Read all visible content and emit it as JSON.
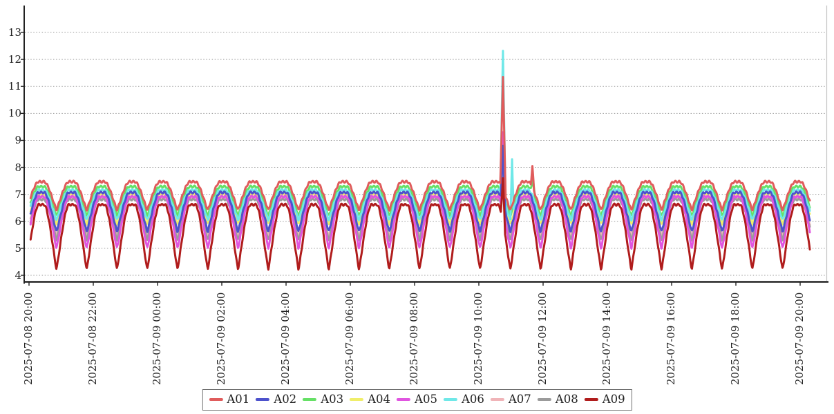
{
  "chart_data": {
    "type": "line",
    "title": "",
    "xlabel": "",
    "ylabel": "",
    "x_start": "2025-07-08 20:00",
    "x_end": "2025-07-09 20:00",
    "x_tick_interval_hours": 2,
    "x_tick_labels": [
      "2025-07-08 20:00",
      "2025-07-08 22:00",
      "2025-07-09 00:00",
      "2025-07-09 02:00",
      "2025-07-09 04:00",
      "2025-07-09 06:00",
      "2025-07-09 08:00",
      "2025-07-09 10:00",
      "2025-07-09 12:00",
      "2025-07-09 14:00",
      "2025-07-09 16:00",
      "2025-07-09 18:00",
      "2025-07-09 20:00"
    ],
    "y_ticks": [
      13,
      12,
      11,
      10,
      9,
      8,
      7,
      6,
      5,
      4
    ],
    "ylim": [
      3.7,
      14.0
    ],
    "grid": "horizontal-dashed",
    "grid_color": "#9a9a9a",
    "legend_position": "bottom-center",
    "series": [
      {
        "name": "A01",
        "color": "#e05c5c",
        "min": 6.42,
        "max": 7.46
      },
      {
        "name": "A02",
        "color": "#4d52cc",
        "min": 5.62,
        "max": 7.06
      },
      {
        "name": "A03",
        "color": "#66e066",
        "min": 6.2,
        "max": 7.28
      },
      {
        "name": "A04",
        "color": "#f0ee6a",
        "min": 5.9,
        "max": 7.0
      },
      {
        "name": "A05",
        "color": "#e055e0",
        "min": 5.0,
        "max": 6.9
      },
      {
        "name": "A06",
        "color": "#6fe8e8",
        "min": 6.05,
        "max": 7.15
      },
      {
        "name": "A07",
        "color": "#f0b4b8",
        "min": 5.45,
        "max": 6.88
      },
      {
        "name": "A08",
        "color": "#9b9b9b",
        "min": 5.3,
        "max": 6.8
      },
      {
        "name": "A09",
        "color": "#b01c1c",
        "min": 4.22,
        "max": 6.6
      }
    ],
    "draw_order": [
      "A03",
      "A04",
      "A06",
      "A07",
      "A08",
      "A05",
      "A02",
      "A01",
      "A09"
    ],
    "wave": {
      "period_minutes": 56.5,
      "peak_minute_offset": 23,
      "peak_exponent": 0.55,
      "notch_depth": 0.1,
      "notch_exponent": 14,
      "start_minute": 3,
      "duration_minutes": 1458,
      "sample_step_minutes": 1
    },
    "events": [
      {
        "series": "A06",
        "minute": 885,
        "peak": 12.32,
        "half_width_minutes": 5
      },
      {
        "series": "A01",
        "minute": 885,
        "peak": 11.35,
        "half_width_minutes": 5
      },
      {
        "series": "A05",
        "minute": 885,
        "peak": 9.3,
        "half_width_minutes": 4
      },
      {
        "series": "A08",
        "minute": 885,
        "peak": 8.9,
        "half_width_minutes": 4
      },
      {
        "series": "A02",
        "minute": 885,
        "peak": 8.8,
        "half_width_minutes": 4
      },
      {
        "series": "A07",
        "minute": 885,
        "peak": 8.6,
        "half_width_minutes": 4
      },
      {
        "series": "A04",
        "minute": 885,
        "peak": 8.3,
        "half_width_minutes": 4
      },
      {
        "series": "A03",
        "minute": 885,
        "peak": 8.1,
        "half_width_minutes": 4
      },
      {
        "series": "A09",
        "minute": 885,
        "peak": 7.6,
        "half_width_minutes": 4
      },
      {
        "series": "A06",
        "minute": 902,
        "peak": 8.3,
        "half_width_minutes": 3
      },
      {
        "series": "A01",
        "minute": 940,
        "peak": 8.05,
        "half_width_minutes": 3
      },
      {
        "series": "A03",
        "minute": 941,
        "peak": 7.55,
        "half_width_minutes": 4
      }
    ],
    "annotation": "Periodic oscillation (~57 min cycle) for all 9 series; transient spike near 2025-07-09 10:45 reaching ~12.3 (A06) and ~11.4 (A01), with smaller after-spikes ~8.3 (A06) and ~8.1 (A01)."
  }
}
